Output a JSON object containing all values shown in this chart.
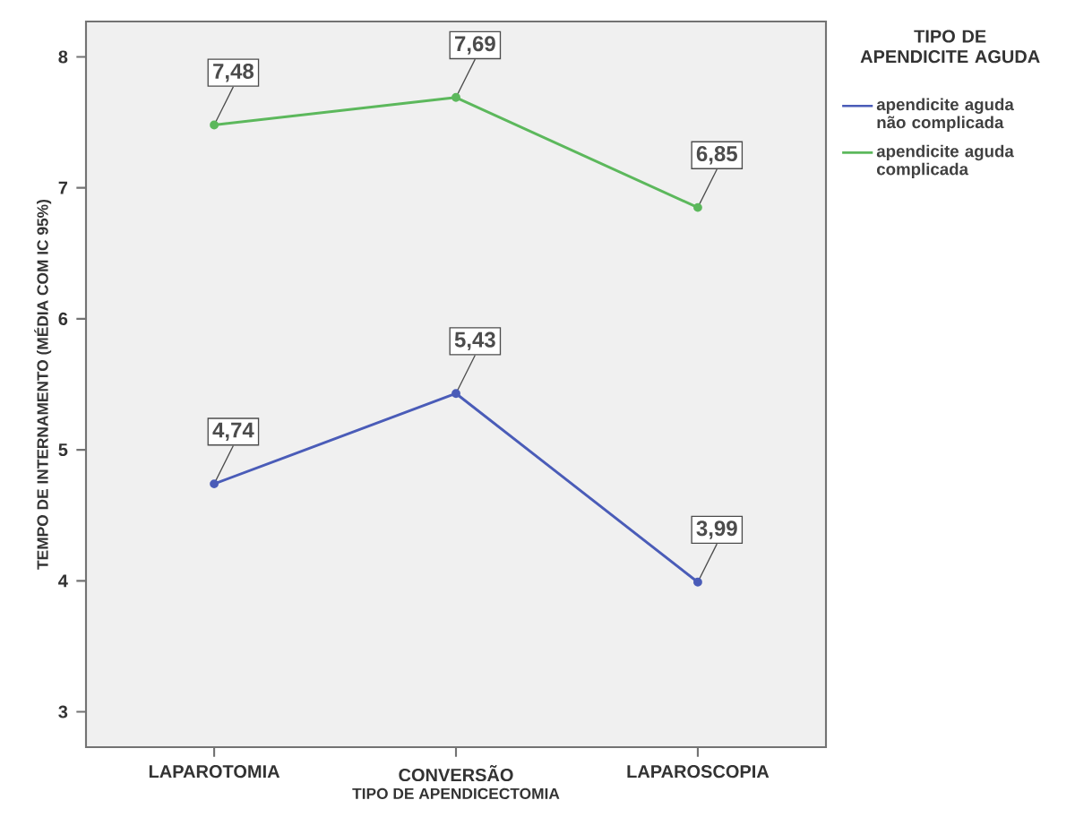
{
  "chart_data": {
    "type": "line",
    "xlabel": "TIPO DE APENDICECTOMIA",
    "ylabel": "TEMPO DE INTERNAMENTO (MÉDIA COM IC 95%)",
    "legend_title": "TIPO DE APENDICITE AGUDA",
    "categories": [
      "LAPAROTOMIA",
      "CONVERSÃO",
      "LAPAROSCOPIA"
    ],
    "ylim": [
      2.73,
      8.27
    ],
    "yticks": [
      3,
      4,
      5,
      6,
      7,
      8
    ],
    "marker": "circle",
    "legend": "right",
    "grid": false,
    "series": [
      {
        "name": "apendicite aguda não complicada",
        "color": "#4a5cb8",
        "values": [
          4.74,
          5.43,
          3.99
        ],
        "value_labels": [
          "4,74",
          "5,43",
          "3,99"
        ]
      },
      {
        "name": "apendicite aguda complicada",
        "color": "#5cb85c",
        "values": [
          7.48,
          7.69,
          6.85
        ],
        "value_labels": [
          "7,48",
          "7,69",
          "6,85"
        ]
      }
    ]
  }
}
